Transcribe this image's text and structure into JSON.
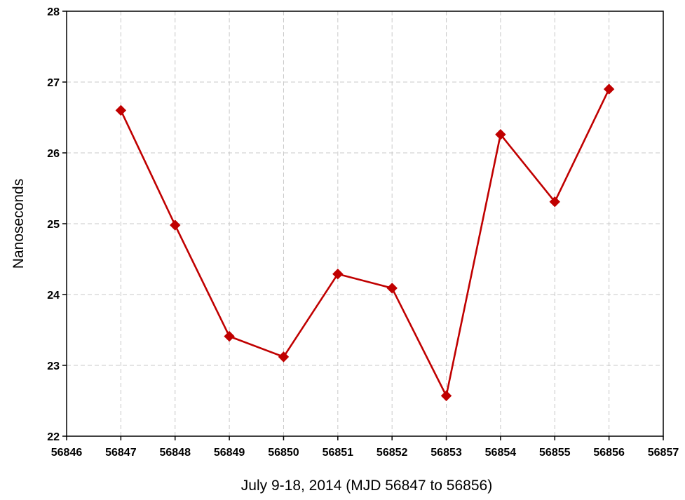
{
  "chart_data": {
    "type": "line",
    "title": "",
    "xlabel": "July 9-18, 2014 (MJD 56847 to 56856)",
    "ylabel": "Nanoseconds",
    "xlim": [
      56846,
      56857
    ],
    "ylim": [
      22,
      28
    ],
    "x_ticks": [
      56846,
      56847,
      56848,
      56849,
      56850,
      56851,
      56852,
      56853,
      56854,
      56855,
      56856,
      56857
    ],
    "y_ticks": [
      22,
      23,
      24,
      25,
      26,
      27,
      28
    ],
    "grid": true,
    "legend": "none",
    "series": [
      {
        "color": "#c00000",
        "marker": "diamond",
        "x": [
          56847,
          56848,
          56849,
          56850,
          56851,
          56852,
          56853,
          56854,
          56855,
          56856
        ],
        "y": [
          26.6,
          24.98,
          23.41,
          23.12,
          24.29,
          24.09,
          22.57,
          26.26,
          25.31,
          26.9
        ]
      }
    ]
  }
}
